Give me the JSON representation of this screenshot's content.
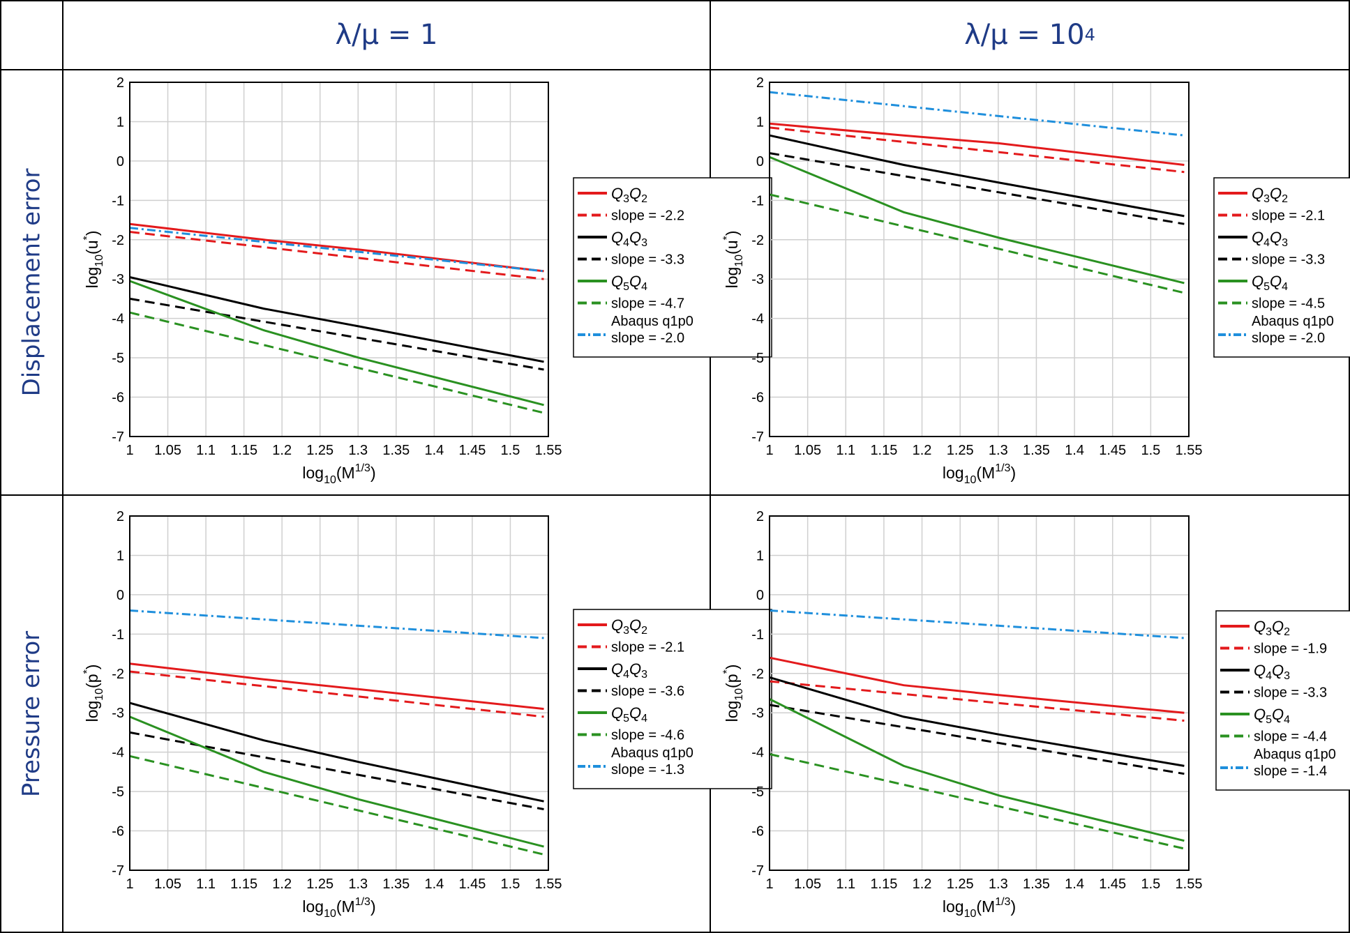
{
  "table": {
    "columns": [
      {
        "label": "λ/μ = 1",
        "sup": ""
      },
      {
        "label": "λ/μ = 10",
        "sup": "4"
      }
    ],
    "rows": [
      "Displacement error",
      "Pressure error"
    ]
  },
  "colors": {
    "red": "#e31a1c",
    "black": "#000000",
    "green": "#2a9121",
    "blue": "#1f8fdc",
    "header": "#1f3b86",
    "grid": "#cfcfcf"
  },
  "chart_data": [
    {
      "id": "disp-l1",
      "type": "line",
      "title": "",
      "xlabel": "log10(M^1/3)",
      "ylabel": "log10(u*)",
      "xlim": [
        1,
        1.55
      ],
      "ylim": [
        -7,
        2
      ],
      "xticks": [
        "1",
        "1.05",
        "1.1",
        "1.15",
        "1.2",
        "1.25",
        "1.3",
        "1.35",
        "1.4",
        "1.45",
        "1.5",
        "1.55"
      ],
      "yticks": [
        "2",
        "1",
        "0",
        "-1",
        "-2",
        "-3",
        "-4",
        "-5",
        "-6",
        "-7"
      ],
      "series": [
        {
          "name": "Q3Q2",
          "color": "red",
          "style": "solid",
          "x": [
            1,
            1.176,
            1.301,
            1.544
          ],
          "y": [
            -1.6,
            -2.0,
            -2.25,
            -2.8
          ]
        },
        {
          "name": "slope = -2.2",
          "color": "red",
          "style": "dashed",
          "x": [
            1,
            1.544
          ],
          "y": [
            -1.8,
            -3.0
          ]
        },
        {
          "name": "Q4Q3",
          "color": "black",
          "style": "solid",
          "x": [
            1,
            1.176,
            1.301,
            1.544
          ],
          "y": [
            -2.95,
            -3.75,
            -4.2,
            -5.1
          ]
        },
        {
          "name": "slope = -3.3",
          "color": "black",
          "style": "dashed",
          "x": [
            1,
            1.544
          ],
          "y": [
            -3.5,
            -5.3
          ]
        },
        {
          "name": "Q5Q4",
          "color": "green",
          "style": "solid",
          "x": [
            1,
            1.176,
            1.301,
            1.544
          ],
          "y": [
            -3.05,
            -4.3,
            -5.0,
            -6.2
          ]
        },
        {
          "name": "slope = -4.7",
          "color": "green",
          "style": "dashed",
          "x": [
            1,
            1.544
          ],
          "y": [
            -3.85,
            -6.4
          ]
        },
        {
          "name": "Abaqus q1p0",
          "color": "blue",
          "style": "dashdot",
          "x": [
            1,
            1.544
          ],
          "y": [
            -1.7,
            -2.8
          ]
        }
      ],
      "legend": [
        {
          "main": "Q",
          "s1": "3",
          "mid": "Q",
          "s2": "2",
          "italic": true,
          "color": "red",
          "style": "solid"
        },
        {
          "main": "slope = -2.2",
          "color": "red",
          "style": "dashed"
        },
        {
          "main": "Q",
          "s1": "4",
          "mid": "Q",
          "s2": "3",
          "italic": true,
          "color": "black",
          "style": "solid"
        },
        {
          "main": "slope = -3.3",
          "color": "black",
          "style": "dashed"
        },
        {
          "main": "Q",
          "s1": "5",
          "mid": "Q",
          "s2": "4",
          "italic": true,
          "color": "green",
          "style": "solid"
        },
        {
          "main": "slope = -4.7",
          "color": "green",
          "style": "dashed"
        },
        {
          "main": "Abaqus q1p0",
          "second": "slope = -2.0",
          "color": "blue",
          "style": "dashdot"
        }
      ]
    },
    {
      "id": "disp-l4",
      "type": "line",
      "title": "",
      "xlabel": "log10(M^1/3)",
      "ylabel": "log10(u*)",
      "xlim": [
        1,
        1.55
      ],
      "ylim": [
        -7,
        2
      ],
      "xticks": [
        "1",
        "1.05",
        "1.1",
        "1.15",
        "1.2",
        "1.25",
        "1.3",
        "1.35",
        "1.4",
        "1.45",
        "1.5",
        "1.55"
      ],
      "yticks": [
        "2",
        "1",
        "0",
        "-1",
        "-2",
        "-3",
        "-4",
        "-5",
        "-6",
        "-7"
      ],
      "series": [
        {
          "name": "Q3Q2",
          "color": "red",
          "style": "solid",
          "x": [
            1,
            1.176,
            1.301,
            1.544
          ],
          "y": [
            0.95,
            0.65,
            0.45,
            -0.1
          ]
        },
        {
          "name": "slope = -2.1",
          "color": "red",
          "style": "dashed",
          "x": [
            1,
            1.544
          ],
          "y": [
            0.85,
            -0.28
          ]
        },
        {
          "name": "Q4Q3",
          "color": "black",
          "style": "solid",
          "x": [
            1,
            1.176,
            1.301,
            1.544
          ],
          "y": [
            0.65,
            -0.1,
            -0.55,
            -1.4
          ]
        },
        {
          "name": "slope = -3.3",
          "color": "black",
          "style": "dashed",
          "x": [
            1,
            1.544
          ],
          "y": [
            0.2,
            -1.6
          ]
        },
        {
          "name": "Q5Q4",
          "color": "green",
          "style": "solid",
          "x": [
            1,
            1.176,
            1.301,
            1.544
          ],
          "y": [
            0.1,
            -1.3,
            -1.95,
            -3.1
          ]
        },
        {
          "name": "slope = -4.5",
          "color": "green",
          "style": "dashed",
          "x": [
            1,
            1.544
          ],
          "y": [
            -0.85,
            -3.35
          ]
        },
        {
          "name": "Abaqus q1p0",
          "color": "blue",
          "style": "dashdot",
          "x": [
            1,
            1.544
          ],
          "y": [
            1.75,
            0.65
          ]
        }
      ],
      "legend": [
        {
          "main": "Q",
          "s1": "3",
          "mid": "Q",
          "s2": "2",
          "italic": true,
          "color": "red",
          "style": "solid"
        },
        {
          "main": "slope = -2.1",
          "color": "red",
          "style": "dashed"
        },
        {
          "main": "Q",
          "s1": "4",
          "mid": "Q",
          "s2": "3",
          "italic": true,
          "color": "black",
          "style": "solid"
        },
        {
          "main": "slope = -3.3",
          "color": "black",
          "style": "dashed"
        },
        {
          "main": "Q",
          "s1": "5",
          "mid": "Q",
          "s2": "4",
          "italic": true,
          "color": "green",
          "style": "solid"
        },
        {
          "main": "slope = -4.5",
          "color": "green",
          "style": "dashed"
        },
        {
          "main": "Abaqus q1p0",
          "second": "slope = -2.0",
          "color": "blue",
          "style": "dashdot"
        }
      ]
    },
    {
      "id": "pres-l1",
      "type": "line",
      "title": "",
      "xlabel": "log10(M^1/3)",
      "ylabel": "log10(p*)",
      "xlim": [
        1,
        1.55
      ],
      "ylim": [
        -7,
        2
      ],
      "xticks": [
        "1",
        "1.05",
        "1.1",
        "1.15",
        "1.2",
        "1.25",
        "1.3",
        "1.35",
        "1.4",
        "1.45",
        "1.5",
        "1.55"
      ],
      "yticks": [
        "2",
        "1",
        "0",
        "-1",
        "-2",
        "-3",
        "-4",
        "-5",
        "-6",
        "-7"
      ],
      "series": [
        {
          "name": "Q3Q2",
          "color": "red",
          "style": "solid",
          "x": [
            1,
            1.176,
            1.301,
            1.544
          ],
          "y": [
            -1.75,
            -2.15,
            -2.4,
            -2.9
          ]
        },
        {
          "name": "slope = -2.1",
          "color": "red",
          "style": "dashed",
          "x": [
            1,
            1.544
          ],
          "y": [
            -1.95,
            -3.1
          ]
        },
        {
          "name": "Q4Q3",
          "color": "black",
          "style": "solid",
          "x": [
            1,
            1.176,
            1.301,
            1.544
          ],
          "y": [
            -2.75,
            -3.7,
            -4.25,
            -5.25
          ]
        },
        {
          "name": "slope = -3.6",
          "color": "black",
          "style": "dashed",
          "x": [
            1,
            1.544
          ],
          "y": [
            -3.5,
            -5.45
          ]
        },
        {
          "name": "Q5Q4",
          "color": "green",
          "style": "solid",
          "x": [
            1,
            1.176,
            1.301,
            1.544
          ],
          "y": [
            -3.1,
            -4.5,
            -5.2,
            -6.4
          ]
        },
        {
          "name": "slope = -4.6",
          "color": "green",
          "style": "dashed",
          "x": [
            1,
            1.544
          ],
          "y": [
            -4.1,
            -6.6
          ]
        },
        {
          "name": "Abaqus q1p0",
          "color": "blue",
          "style": "dashdot",
          "x": [
            1,
            1.544
          ],
          "y": [
            -0.4,
            -1.1
          ]
        }
      ],
      "legend": [
        {
          "main": "Q",
          "s1": "3",
          "mid": "Q",
          "s2": "2",
          "italic": true,
          "color": "red",
          "style": "solid"
        },
        {
          "main": "slope = -2.1",
          "color": "red",
          "style": "dashed"
        },
        {
          "main": "Q",
          "s1": "4",
          "mid": "Q",
          "s2": "3",
          "italic": true,
          "color": "black",
          "style": "solid"
        },
        {
          "main": "slope = -3.6",
          "color": "black",
          "style": "dashed"
        },
        {
          "main": "Q",
          "s1": "5",
          "mid": "Q",
          "s2": "4",
          "italic": true,
          "color": "green",
          "style": "solid"
        },
        {
          "main": "slope = -4.6",
          "color": "green",
          "style": "dashed"
        },
        {
          "main": "Abaqus q1p0",
          "second": "slope = -1.3",
          "color": "blue",
          "style": "dashdot"
        }
      ]
    },
    {
      "id": "pres-l4",
      "type": "line",
      "title": "",
      "xlabel": "log10(M^1/3)",
      "ylabel": "log10(p*)",
      "xlim": [
        1,
        1.55
      ],
      "ylim": [
        -7,
        2
      ],
      "xticks": [
        "1",
        "1.05",
        "1.1",
        "1.15",
        "1.2",
        "1.25",
        "1.3",
        "1.35",
        "1.4",
        "1.45",
        "1.5",
        "1.55"
      ],
      "yticks": [
        "2",
        "1",
        "0",
        "-1",
        "-2",
        "-3",
        "-4",
        "-5",
        "-6",
        "-7"
      ],
      "series": [
        {
          "name": "Q3Q2",
          "color": "red",
          "style": "solid",
          "x": [
            1,
            1.176,
            1.301,
            1.544
          ],
          "y": [
            -1.6,
            -2.3,
            -2.55,
            -3.0
          ]
        },
        {
          "name": "slope = -1.9",
          "color": "red",
          "style": "dashed",
          "x": [
            1,
            1.544
          ],
          "y": [
            -2.2,
            -3.2
          ]
        },
        {
          "name": "Q4Q3",
          "color": "black",
          "style": "solid",
          "x": [
            1,
            1.176,
            1.301,
            1.544
          ],
          "y": [
            -2.1,
            -3.1,
            -3.55,
            -4.35
          ]
        },
        {
          "name": "slope = -3.3",
          "color": "black",
          "style": "dashed",
          "x": [
            1,
            1.544
          ],
          "y": [
            -2.8,
            -4.55
          ]
        },
        {
          "name": "Q5Q4",
          "color": "green",
          "style": "solid",
          "x": [
            1,
            1.176,
            1.301,
            1.544
          ],
          "y": [
            -2.65,
            -4.35,
            -5.1,
            -6.25
          ]
        },
        {
          "name": "slope = -4.4",
          "color": "green",
          "style": "dashed",
          "x": [
            1,
            1.544
          ],
          "y": [
            -4.05,
            -6.45
          ]
        },
        {
          "name": "Abaqus q1p0",
          "color": "blue",
          "style": "dashdot",
          "x": [
            1,
            1.544
          ],
          "y": [
            -0.4,
            -1.1
          ]
        }
      ],
      "legend": [
        {
          "main": "Q",
          "s1": "3",
          "mid": "Q",
          "s2": "2",
          "italic": true,
          "color": "red",
          "style": "solid"
        },
        {
          "main": "slope = -1.9",
          "color": "red",
          "style": "dashed"
        },
        {
          "main": "Q",
          "s1": "4",
          "mid": "Q",
          "s2": "3",
          "italic": true,
          "color": "black",
          "style": "solid"
        },
        {
          "main": "slope = -3.3",
          "color": "black",
          "style": "dashed"
        },
        {
          "main": "Q",
          "s1": "5",
          "mid": "Q",
          "s2": "4",
          "italic": true,
          "color": "green",
          "style": "solid"
        },
        {
          "main": "slope = -4.4",
          "color": "green",
          "style": "dashed"
        },
        {
          "main": "Abaqus q1p0",
          "second": "slope = -1.4",
          "color": "blue",
          "style": "dashdot"
        }
      ]
    }
  ]
}
